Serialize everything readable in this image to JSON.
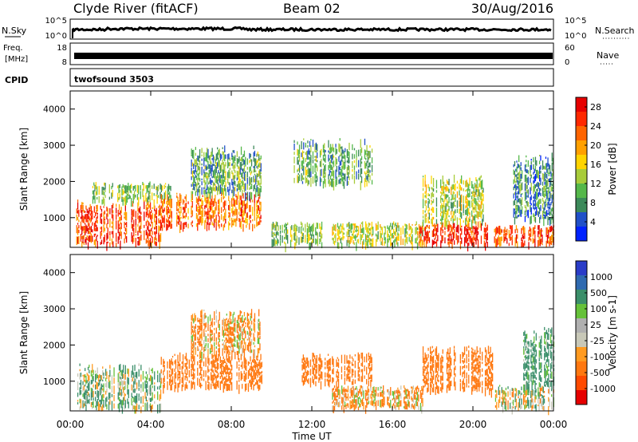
{
  "header": {
    "station": "Clyde River (fitACF)",
    "beam": "Beam 02",
    "date": "30/Aug/2016"
  },
  "noise_panel": {
    "left_label": "N.Sky",
    "left_ticks": [
      "10^5",
      "10^0"
    ],
    "right_label": "N.Search",
    "right_ticks": [
      "10^5",
      "10^0"
    ]
  },
  "freq_panel": {
    "left_label_line1": "Freq.",
    "left_label_line2": "[MHz]",
    "left_ticks": [
      "18",
      "8"
    ],
    "right_label": "Nave",
    "right_ticks": [
      "60",
      "0"
    ]
  },
  "cpid_panel": {
    "label": "CPID",
    "value": "twofsound 3503"
  },
  "x_axis": {
    "label": "Time UT",
    "ticks": [
      "00:00",
      "04:00",
      "08:00",
      "12:00",
      "16:00",
      "20:00",
      "00:00"
    ]
  },
  "colors": {
    "power_scale": [
      "#0022ff",
      "#2050c8",
      "#3c8a5a",
      "#55b84a",
      "#a8cc3a",
      "#ffd400",
      "#ffa000",
      "#ff6400",
      "#ff2800",
      "#e60000"
    ],
    "velocity_scale": [
      "#2a3cc8",
      "#2f6ab0",
      "#3b8f6a",
      "#66c23a",
      "#b0b0b0",
      "#c8c8b8",
      "#ff9a20",
      "#ff7810",
      "#ff4a00",
      "#e60000"
    ]
  },
  "chart_data": [
    {
      "type": "heatmap",
      "name": "power-panel",
      "ylabel": "Slant Range [km]",
      "yticks": [
        "1000",
        "2000",
        "3000",
        "4000"
      ],
      "ylim": [
        180,
        4500
      ],
      "colorbar_label": "Power [dB]",
      "colorbar_ticks": [
        "4",
        "8",
        "12",
        "16",
        "20",
        "24",
        "28"
      ],
      "colorbar_range": [
        0,
        30
      ],
      "blobs": [
        {
          "t": 0.3,
          "t2": 4.5,
          "r": 300,
          "r2": 1500,
          "v": 24
        },
        {
          "t": 1.0,
          "t2": 5.0,
          "r": 1500,
          "r2": 2000,
          "v": 12
        },
        {
          "t": 4.5,
          "t2": 9.5,
          "r": 800,
          "r2": 1700,
          "v": 22
        },
        {
          "t": 6.0,
          "t2": 9.5,
          "r": 1700,
          "r2": 3000,
          "v": 10
        },
        {
          "t": 10.0,
          "t2": 12.5,
          "r": 300,
          "r2": 900,
          "v": 12
        },
        {
          "t": 11.0,
          "t2": 15.0,
          "r": 2000,
          "r2": 3200,
          "v": 10
        },
        {
          "t": 13.0,
          "t2": 17.5,
          "r": 300,
          "r2": 900,
          "v": 14
        },
        {
          "t": 17.3,
          "t2": 20.7,
          "r": 300,
          "r2": 900,
          "v": 26
        },
        {
          "t": 17.5,
          "t2": 20.5,
          "r": 900,
          "r2": 2200,
          "v": 14
        },
        {
          "t": 21.0,
          "t2": 24.0,
          "r": 300,
          "r2": 800,
          "v": 24
        },
        {
          "t": 22.0,
          "t2": 24.0,
          "r": 1000,
          "r2": 2800,
          "v": 8
        }
      ]
    },
    {
      "type": "heatmap",
      "name": "velocity-panel",
      "ylabel": "Slant Range [km]",
      "yticks": [
        "1000",
        "2000",
        "3000",
        "4000"
      ],
      "ylim": [
        180,
        4500
      ],
      "colorbar_label": "Velocity [m s-1]",
      "colorbar_ticks": [
        "1000",
        "500",
        "100",
        "25",
        "-25",
        "-100",
        "-500",
        "-1000"
      ],
      "blobs": [
        {
          "t": 0.3,
          "t2": 4.5,
          "r": 300,
          "r2": 1500,
          "v": 100
        },
        {
          "t": 4.5,
          "t2": 9.5,
          "r": 900,
          "r2": 1800,
          "v": -300
        },
        {
          "t": 6.0,
          "t2": 9.5,
          "r": 1800,
          "r2": 3000,
          "v": -100
        },
        {
          "t": 11.5,
          "t2": 15.0,
          "r": 1000,
          "r2": 1800,
          "v": -300
        },
        {
          "t": 13.0,
          "t2": 17.5,
          "r": 300,
          "r2": 900,
          "v": -100
        },
        {
          "t": 17.5,
          "t2": 21.0,
          "r": 800,
          "r2": 2000,
          "v": -300
        },
        {
          "t": 21.0,
          "t2": 24.0,
          "r": 300,
          "r2": 900,
          "v": 0
        },
        {
          "t": 22.5,
          "t2": 24.0,
          "r": 900,
          "r2": 2500,
          "v": 200
        }
      ]
    }
  ]
}
